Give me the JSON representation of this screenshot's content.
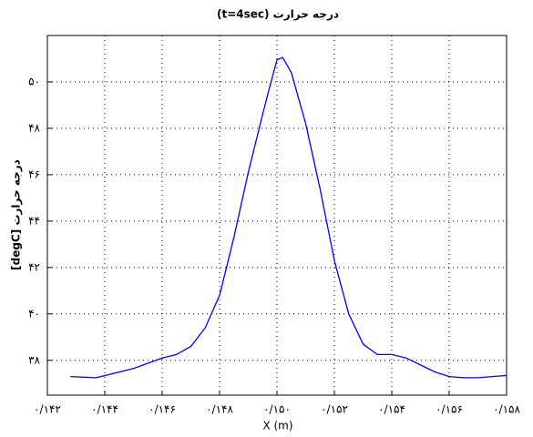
{
  "chart_data": {
    "type": "line",
    "title": "درجه حرارت (t=4sec)",
    "x_label": "X (m)",
    "y_label": "درجه حرارت [degC]",
    "x": [
      0.1428,
      0.1437,
      0.145,
      0.146,
      0.1465,
      0.147,
      0.1475,
      0.148,
      0.1485,
      0.149,
      0.1495,
      0.14975,
      0.15,
      0.1502,
      0.1505,
      0.151,
      0.1515,
      0.152,
      0.1525,
      0.153,
      0.1535,
      0.154,
      0.1545,
      0.155,
      0.1555,
      0.156,
      0.1565,
      0.157,
      0.1575,
      0.158
    ],
    "series": [
      {
        "color": "#0000ff",
        "values": [
          37.3,
          37.25,
          37.65,
          38.1,
          38.25,
          38.6,
          39.4,
          40.8,
          43.3,
          46.1,
          48.6,
          49.8,
          50.95,
          51.05,
          50.4,
          48.2,
          45.4,
          42.3,
          40.0,
          38.7,
          38.25,
          38.25,
          38.1,
          37.8,
          37.5,
          37.3,
          37.25,
          37.25,
          37.3,
          37.35
        ]
      }
    ],
    "xlim": [
      0.142,
      0.158
    ],
    "ylim": [
      36.5,
      52
    ],
    "xticks": [
      {
        "value": 0.142,
        "label": "۰/۱۴۲"
      },
      {
        "value": 0.144,
        "label": "۰/۱۴۴"
      },
      {
        "value": 0.146,
        "label": "۰/۱۴۶"
      },
      {
        "value": 0.148,
        "label": "۰/۱۴۸"
      },
      {
        "value": 0.15,
        "label": "۰/۱۵۰"
      },
      {
        "value": 0.152,
        "label": "۰/۱۵۲"
      },
      {
        "value": 0.154,
        "label": "۰/۱۵۴"
      },
      {
        "value": 0.156,
        "label": "۰/۱۵۶"
      },
      {
        "value": 0.158,
        "label": "۰/۱۵۸"
      }
    ],
    "yticks": [
      {
        "value": 38,
        "label": "۳۸"
      },
      {
        "value": 40,
        "label": "۴۰"
      },
      {
        "value": 42,
        "label": "۴۲"
      },
      {
        "value": 44,
        "label": "۴۴"
      },
      {
        "value": 46,
        "label": "۴۶"
      },
      {
        "value": 48,
        "label": "۴۸"
      },
      {
        "value": 50,
        "label": "۵۰"
      }
    ],
    "grid": true
  }
}
